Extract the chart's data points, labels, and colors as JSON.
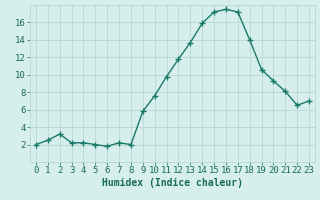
{
  "x": [
    0,
    1,
    2,
    3,
    4,
    5,
    6,
    7,
    8,
    9,
    10,
    11,
    12,
    13,
    14,
    15,
    16,
    17,
    18,
    19,
    20,
    21,
    22,
    23
  ],
  "y": [
    2,
    2.5,
    3.2,
    2.2,
    2.2,
    2.0,
    1.8,
    2.2,
    2.0,
    5.8,
    7.6,
    9.8,
    11.8,
    13.7,
    15.9,
    17.2,
    17.5,
    17.2,
    14.0,
    10.6,
    9.3,
    8.1,
    6.5,
    7.0
  ],
  "xlabel": "Humidex (Indice chaleur)",
  "line_color": "#1a7a6a",
  "marker": "+",
  "marker_size": 4,
  "linewidth": 1.0,
  "grid_color": "#b8d8d4",
  "plot_bg": "#d6efec",
  "fig_bg": "#d6efec",
  "ylim": [
    0,
    18
  ],
  "xlim": [
    -0.5,
    23.5
  ],
  "yticks": [
    2,
    4,
    6,
    8,
    10,
    12,
    14,
    16
  ],
  "xticks": [
    0,
    1,
    2,
    3,
    4,
    5,
    6,
    7,
    8,
    9,
    10,
    11,
    12,
    13,
    14,
    15,
    16,
    17,
    18,
    19,
    20,
    21,
    22,
    23
  ],
  "xlabel_fontsize": 7,
  "tick_fontsize": 6.5,
  "tick_color": "#1a6a5a"
}
